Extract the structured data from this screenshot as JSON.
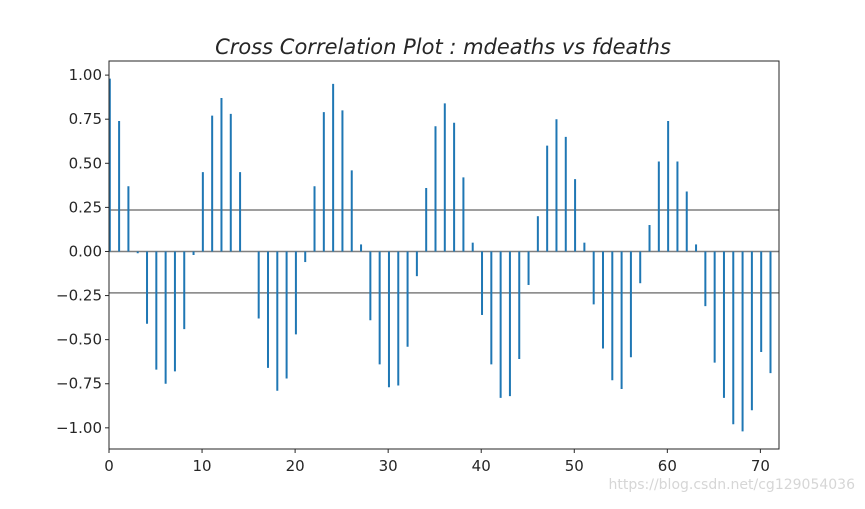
{
  "chart_data": {
    "type": "bar",
    "title": "Cross Correlation Plot :  mdeaths vs fdeaths",
    "xlabel": "",
    "ylabel": "",
    "xlim": [
      0,
      72
    ],
    "ylim": [
      -1.12,
      1.08
    ],
    "x_ticks": [
      0,
      10,
      20,
      30,
      40,
      50,
      60,
      70
    ],
    "x_tick_labels": [
      "0",
      "10",
      "20",
      "30",
      "40",
      "50",
      "60",
      "70"
    ],
    "y_ticks": [
      1.0,
      0.75,
      0.5,
      0.25,
      0.0,
      -0.25,
      -0.5,
      -0.75,
      -1.0
    ],
    "y_tick_labels": [
      "1.00",
      "0.75",
      "0.50",
      "0.25",
      "0.00",
      "−0.25",
      "−0.50",
      "−0.75",
      "−1.00"
    ],
    "confidence_bounds": [
      0.235,
      0.0,
      -0.235
    ],
    "grid": false,
    "series": [
      {
        "color": "#1f77b4",
        "x": [
          0,
          1,
          2,
          3,
          4,
          5,
          6,
          7,
          8,
          9,
          10,
          11,
          12,
          13,
          14,
          15,
          16,
          17,
          18,
          19,
          20,
          21,
          22,
          23,
          24,
          25,
          26,
          27,
          28,
          29,
          30,
          31,
          32,
          33,
          34,
          35,
          36,
          37,
          38,
          39,
          40,
          41,
          42,
          43,
          44,
          45,
          46,
          47,
          48,
          49,
          50,
          51,
          52,
          53,
          54,
          55,
          56,
          57,
          58,
          59,
          60,
          61,
          62,
          63,
          64,
          65,
          66,
          67,
          68,
          69,
          70,
          71
        ],
        "values": [
          0.98,
          0.74,
          0.37,
          -0.01,
          -0.41,
          -0.67,
          -0.75,
          -0.68,
          -0.44,
          -0.02,
          0.45,
          0.77,
          0.87,
          0.78,
          0.45,
          0.0,
          -0.38,
          -0.66,
          -0.79,
          -0.72,
          -0.47,
          -0.06,
          0.37,
          0.79,
          0.95,
          0.8,
          0.46,
          0.04,
          -0.39,
          -0.64,
          -0.77,
          -0.76,
          -0.54,
          -0.14,
          0.36,
          0.71,
          0.84,
          0.73,
          0.42,
          0.05,
          -0.36,
          -0.64,
          -0.83,
          -0.82,
          -0.61,
          -0.19,
          0.2,
          0.6,
          0.75,
          0.65,
          0.41,
          0.05,
          -0.3,
          -0.55,
          -0.73,
          -0.78,
          -0.6,
          -0.18,
          0.15,
          0.51,
          0.74,
          0.51,
          0.34,
          0.04,
          -0.31,
          -0.63,
          -0.83,
          -0.98,
          -1.02,
          -0.9,
          -0.57,
          -0.69
        ]
      }
    ]
  },
  "watermark_text": "https://blog.csdn.net/cg129054036"
}
